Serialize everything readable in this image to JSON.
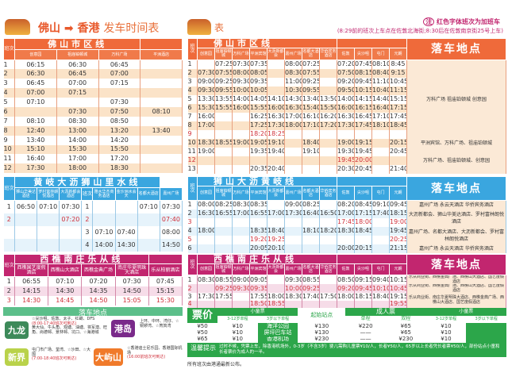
{
  "title": {
    "from": "佛山",
    "arrow": "➡",
    "to": "香港",
    "rest": "发车时间表",
    "rest_right": "表"
  },
  "notes": {
    "badge": "注",
    "red_note": "红色字体班次为加班车",
    "route_note": "(8:29前的班次上车点在佐敦北海街;8:30后在佐敦南京街25号上车)"
  },
  "colors": {
    "orange": "#f07a4a",
    "blue": "#3aa6df",
    "pink": "#c2266f",
    "green": "#2ca64a",
    "red_text": "#d0303a"
  },
  "left_city": {
    "title": "佛山市区线",
    "no_label": "班次",
    "headers": [
      "创意园",
      "祖庙铂顿城",
      "万科广场",
      "平洲酒店"
    ],
    "rows": [
      [
        "1",
        "06:15",
        "06:30",
        "06:45",
        ""
      ],
      [
        "2",
        "06:30",
        "06:45",
        "07:00",
        ""
      ],
      [
        "3",
        "06:45",
        "07:00",
        "07:15",
        ""
      ],
      [
        "4",
        "07:00",
        "07:15",
        "",
        ""
      ],
      [
        "5",
        "07:10",
        "",
        "07:30",
        ""
      ],
      [
        "6",
        "",
        "07:30",
        "07:50",
        "08:10"
      ],
      [
        "7",
        "08:10",
        "08:30",
        "08:50",
        ""
      ],
      [
        "8",
        "12:40",
        "13:00",
        "13:20",
        "13:40"
      ],
      [
        "9",
        "13:40",
        "14:00",
        "14:20",
        ""
      ],
      [
        "10",
        "15:10",
        "15:30",
        "15:50",
        ""
      ],
      [
        "11",
        "16:40",
        "17:00",
        "17:20",
        ""
      ],
      [
        "12",
        "17:30",
        "18:00",
        "18:30",
        ""
      ]
    ]
  },
  "left_blue": {
    "title": "黄岐大沥狮山里水线",
    "no_label": "班次",
    "headers_a": [
      "狮山华美达酒店",
      "罗村富林朗悦酒店",
      "大沥新都会酒店"
    ],
    "rows_a": [
      {
        "no": "1",
        "cells": [
          "06:50",
          "07:10",
          "07:30"
        ]
      },
      {
        "no": "2",
        "cells": [
          "",
          "",
          "07:20"
        ],
        "extra": true
      },
      {
        "no": "",
        "cells": [
          "",
          "",
          ""
        ]
      },
      {
        "no": "",
        "cells": [
          "",
          "",
          ""
        ]
      }
    ],
    "headers_b": [
      "雅水华杰商务酒店",
      "金沙洲水会天",
      "名都大酒店",
      "嘉州广场"
    ],
    "rows_b": [
      {
        "no": "1",
        "cells": [
          "",
          "",
          "07:10",
          "07:30"
        ]
      },
      {
        "no": "2",
        "cells": [
          "",
          "",
          "",
          "07:40"
        ],
        "extra": true
      },
      {
        "no": "3",
        "cells": [
          "07:10",
          "07:40",
          "",
          "08:00"
        ]
      },
      {
        "no": "4",
        "cells": [
          "14:00",
          "14:30",
          "",
          "14:50"
        ]
      }
    ]
  },
  "left_pink": {
    "title": "西樵南庄乐从线",
    "no_label": "班次",
    "headers": [
      "西樵国艺度假酒店",
      "西樵山大酒店",
      "西樵金典广场",
      "南庄华夏明珠大酒店",
      "乐从柏丽酒店"
    ],
    "rows": [
      {
        "no": "1",
        "cells": [
          "06:55",
          "07:10",
          "07:20",
          "07:30",
          "07:45"
        ]
      },
      {
        "no": "2",
        "cells": [
          "14:15",
          "14:30",
          "14:35",
          "14:50",
          "15:15"
        ]
      },
      {
        "no": "3",
        "cells": [
          "14:30",
          "14:45",
          "14:50",
          "15:05",
          "15:30"
        ],
        "extra": true
      }
    ]
  },
  "dropoff": {
    "title": "落车地点",
    "kowloon": {
      "label": "九龙",
      "text": "☆尖沙咀、佐敦、太子、红磡、DFS",
      "time": "(8:00-17:40班次可到达)",
      "more": "黄大仙、牛头角、观塘、油塘、将军澳、旺角、尚德邨、景林邨、坑口、☆海港城"
    },
    "island": {
      "label": "港岛",
      "text": "上环、中环、湾仔、☆铜锣湾、☆筲箕湾"
    },
    "nt": {
      "label": "新界",
      "text": "屯门市广场、荃湾、☆沙田、☆大围",
      "time": "(7:00-18:40班次可到达)"
    },
    "lantau": {
      "label": "大屿山",
      "text": "☆香港迪士尼乐园、香港国际机场",
      "time": "(16:00前班次可到达)"
    }
  },
  "right_headers": {
    "foshan_title": "佛山市区线",
    "no_label": "班次",
    "foshan": [
      "创意园",
      "祖庙铂顿城",
      "万科广场",
      "平洲宾馆",
      "大沥新都会",
      "嘉州广场",
      "名都大酒店",
      "华侨宾务酒店"
    ],
    "hk": [
      "佐敦",
      "尖沙咀",
      "屯门",
      "元朗"
    ],
    "drop_title": "落车地点"
  },
  "right_city": {
    "rows": [
      {
        "no": "1",
        "cells": [
          "",
          "07:25",
          "07:30",
          "07:35",
          "",
          "08:00",
          "07:25",
          "",
          "07:20",
          "07:45",
          "08:10",
          "8:45"
        ]
      },
      {
        "no": "2",
        "cells": [
          "07:30",
          "07:55",
          "08:00",
          "08:05",
          "",
          "08:30",
          "07:55",
          "",
          "07:50",
          "08:15",
          "08:40",
          "9:15"
        ]
      },
      {
        "no": "3",
        "cells": [
          "09:00",
          "09:25",
          "09:30",
          "09:35",
          "",
          "11:00",
          "09:25",
          "",
          "09:20",
          "09:45",
          "11:10",
          "10:45"
        ]
      },
      {
        "no": "4",
        "cells": [
          "09:30",
          "09:55",
          "10:00",
          "10:05",
          "",
          "10:30",
          "09:55",
          "",
          "09:50",
          "10:15",
          "10:40",
          "11:15"
        ]
      },
      {
        "no": "5",
        "cells": [
          "13:30",
          "13:55",
          "14:00",
          "14:05",
          "14:10",
          "14:30",
          "13:40",
          "13:50",
          "14:00",
          "14:15",
          "14:40",
          "15:15"
        ]
      },
      {
        "no": "6",
        "cells": [
          "15:30",
          "15:55",
          "16:00",
          "15:55",
          "16:00",
          "16:30",
          "15:40",
          "15:50",
          "16:00",
          "16:15",
          "16:40",
          "17:15"
        ]
      },
      {
        "no": "7",
        "cells": [
          "16:00",
          "",
          "",
          "16:25",
          "16:30",
          "17:00",
          "16:10",
          "16:20",
          "16:30",
          "16:45",
          "17:10",
          "17:45"
        ]
      },
      {
        "no": "8",
        "cells": [
          "17:00",
          "",
          "",
          "17:25",
          "17:30",
          "18:00",
          "17:10",
          "17:20",
          "17:30",
          "17:45",
          "18:10",
          "18:45"
        ]
      },
      {
        "no": "9",
        "cells": [
          "",
          "",
          "",
          "18:20",
          "18:25",
          "",
          "",
          "",
          "",
          "",
          "",
          ""
        ],
        "extra": true
      },
      {
        "no": "10",
        "cells": [
          "18:30",
          "18:55",
          "19:00",
          "19:05",
          "19:10",
          "",
          "18:40",
          "",
          "19:00",
          "19:15",
          "",
          "20:15"
        ]
      },
      {
        "no": "11",
        "cells": [
          "19:00",
          "",
          "",
          "19:35",
          "19:40",
          "",
          "19:10",
          "",
          "19:30",
          "19:45",
          "",
          "20:45"
        ]
      },
      {
        "no": "12",
        "cells": [
          "",
          "",
          "",
          "",
          "",
          "",
          "",
          "",
          "19:45",
          "20:00",
          "",
          ""
        ],
        "extra": true
      },
      {
        "no": "13",
        "cells": [
          "",
          "",
          "",
          "20:35",
          "20:40",
          "",
          "",
          "",
          "20:30",
          "20:45",
          "",
          "21:40"
        ]
      }
    ],
    "drops": [
      {
        "text": "万科广场 祖庙铂顿城 创意园",
        "span": 9
      },
      {
        "text": "平洲宾馆、万科广场、祖庙铂顿城",
        "span": 1
      },
      {
        "text": "万科广场、祖庙铂顿城、创意园",
        "span": 3
      }
    ]
  },
  "right_blue": {
    "title": "狮山大沥黄岐线",
    "rows": [
      {
        "no": "1",
        "cells": [
          "08:00",
          "08:25",
          "08:30",
          "08:35",
          "",
          "09:00",
          "08:25",
          "",
          "08:20",
          "08:45",
          "09:10",
          "09:45"
        ]
      },
      {
        "no": "2",
        "cells": [
          "16:30",
          "16:55",
          "17:00",
          "16:55",
          "17:00",
          "17:30",
          "16:40",
          "16:50",
          "17:00",
          "17:15",
          "17:40",
          "18:15"
        ]
      },
      {
        "no": "3",
        "cells": [
          "",
          "",
          "",
          "",
          "",
          "",
          "",
          "",
          "17:45",
          "18:00",
          "",
          "19:00"
        ],
        "extra": true
      },
      {
        "no": "4",
        "cells": [
          "18:00",
          "",
          "",
          "18:35",
          "18:40",
          "",
          "18:10",
          "18:20",
          "18:30",
          "18:45",
          "",
          "19:45"
        ]
      },
      {
        "no": "5",
        "cells": [
          "",
          "",
          "",
          "19:20",
          "19:25",
          "",
          "",
          "",
          "",
          "",
          "",
          "20:25"
        ],
        "extra": true
      },
      {
        "no": "6",
        "cells": [
          "",
          "",
          "",
          "20:05",
          "20:10",
          "",
          "",
          "",
          "20:00",
          "20:15",
          "",
          "21:15"
        ]
      }
    ],
    "drops": [
      {
        "text": "嘉州广场 永云天酒店 华侨宾务酒店",
        "span": 1
      },
      {
        "text": "大沥新都会、狮山华美达酒店、罗村富林朗悦酒店",
        "span": 2
      },
      {
        "text": "嘉州广场、名都大酒店、大沥新都会、罗村富林朗悦酒店",
        "span": 2
      },
      {
        "text": "嘉州广场 永云天酒店 华侨宾务酒店",
        "span": 1
      }
    ]
  },
  "right_pink": {
    "title": "西樵南庄乐从线",
    "rows": [
      {
        "no": "1",
        "cells": [
          "08:30",
          "08:55",
          "09:00",
          "09:05",
          "",
          "09:30",
          "08:55",
          "",
          "08:50",
          "09:15",
          "09:40",
          "10:15"
        ]
      },
      {
        "no": "2",
        "cells": [
          "",
          "09:25",
          "09:30",
          "09:35",
          "",
          "10:00",
          "09:25",
          "",
          "09:20",
          "09:45",
          "10:10",
          "10:45"
        ],
        "extra": true
      },
      {
        "no": "3",
        "cells": [
          "17:30",
          "17:55",
          "",
          "17:55",
          "18:00",
          "18:30",
          "17:40",
          "17:50",
          "18:00",
          "18:15",
          "18:40",
          "19:15"
        ]
      },
      {
        "no": "4",
        "cells": [
          "",
          "",
          "",
          "18:50",
          "18:55",
          "",
          "",
          "",
          "",
          "",
          "",
          "19:55"
        ],
        "extra": true
      }
    ],
    "drops": [
      {
        "text": "乐从商业街、西樵金典广场、西樵山大酒店、国艺度假酒店",
        "span": 1
      },
      {
        "text": "乐从商业街、西樵金典广场、西樵山大酒店、国艺度假酒店",
        "span": 1
      },
      {
        "text": "乐从商业街、南庄华夏明珠大酒店、西樵金典广场、西樵山大酒店、国艺度假酒店",
        "span": 2
      }
    ]
  },
  "price": {
    "label": "票价",
    "child": "小童票",
    "child_a": "3-12岁单程",
    "child_b": "3岁以下单程",
    "origin": "起始站点",
    "adult": "成人票",
    "single": "单程",
    "return": "双程",
    "rows": [
      [
        "¥50",
        "¥10",
        "海洋公园",
        "¥130",
        "¥220",
        "¥65",
        "¥10"
      ],
      [
        "¥50",
        "¥10",
        "屏坪巴车站",
        "¥130",
        "——",
        "¥65",
        "¥10"
      ],
      [
        "¥65",
        "¥10",
        "香港机场",
        "¥230",
        "——",
        "¥230",
        "¥10"
      ]
    ],
    "tip_label": "温馨提示",
    "tip": "过时不候，凭票上车，除香港机场外，0-3岁（不含3岁）婴儿需购儿童票¥10/人，长者¥50/人，65岁以上长者凭长者票¥50/人，部份站点小童和长者票价为成人的一半。",
    "footer": "所有班次由港通最新公布。"
  }
}
